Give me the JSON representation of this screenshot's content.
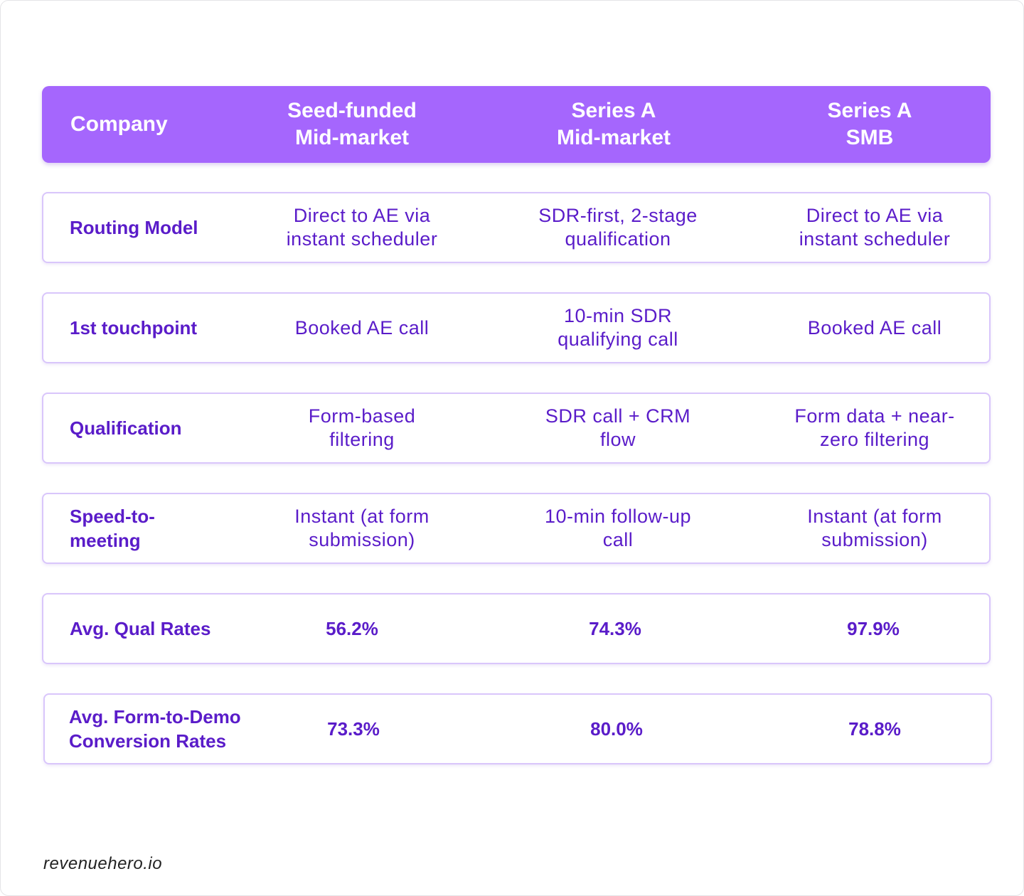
{
  "header": {
    "company": "Company",
    "col1": [
      "Seed-funded",
      "Mid-market"
    ],
    "col2": [
      "Series A",
      "Mid-market"
    ],
    "col3": [
      "Series A",
      "SMB"
    ]
  },
  "rows": [
    {
      "label": "Routing Model",
      "v1": "Direct to AE via instant scheduler",
      "v2": "SDR-first, 2-stage qualification",
      "v3": "Direct to AE via instant scheduler"
    },
    {
      "label": "1st touchpoint",
      "v1": "Booked AE call",
      "v2": "10-min SDR qualifying call",
      "v3": "Booked AE call"
    },
    {
      "label": "Qualification",
      "v1": "Form-based filtering",
      "v2": "SDR call + CRM flow",
      "v3": "Form data + near-zero filtering"
    },
    {
      "label": "Speed-to-meeting",
      "v1": "Instant (at form submission)",
      "v2": "10-min follow-up call",
      "v3": "Instant (at form submission)"
    },
    {
      "label": "Avg. Qual Rates",
      "v1": "56.2%",
      "v2": "74.3%",
      "v3": "97.9%"
    },
    {
      "label": "Avg. Form-to-Demo Conversion Rates",
      "v1": "73.3%",
      "v2": "80.0%",
      "v3": "78.8%"
    }
  ],
  "footer": "revenuehero.io",
  "colors": {
    "header_bg": "#a566fd",
    "text_purple": "#5a1cc9",
    "row_border": "#d9c6fb"
  }
}
